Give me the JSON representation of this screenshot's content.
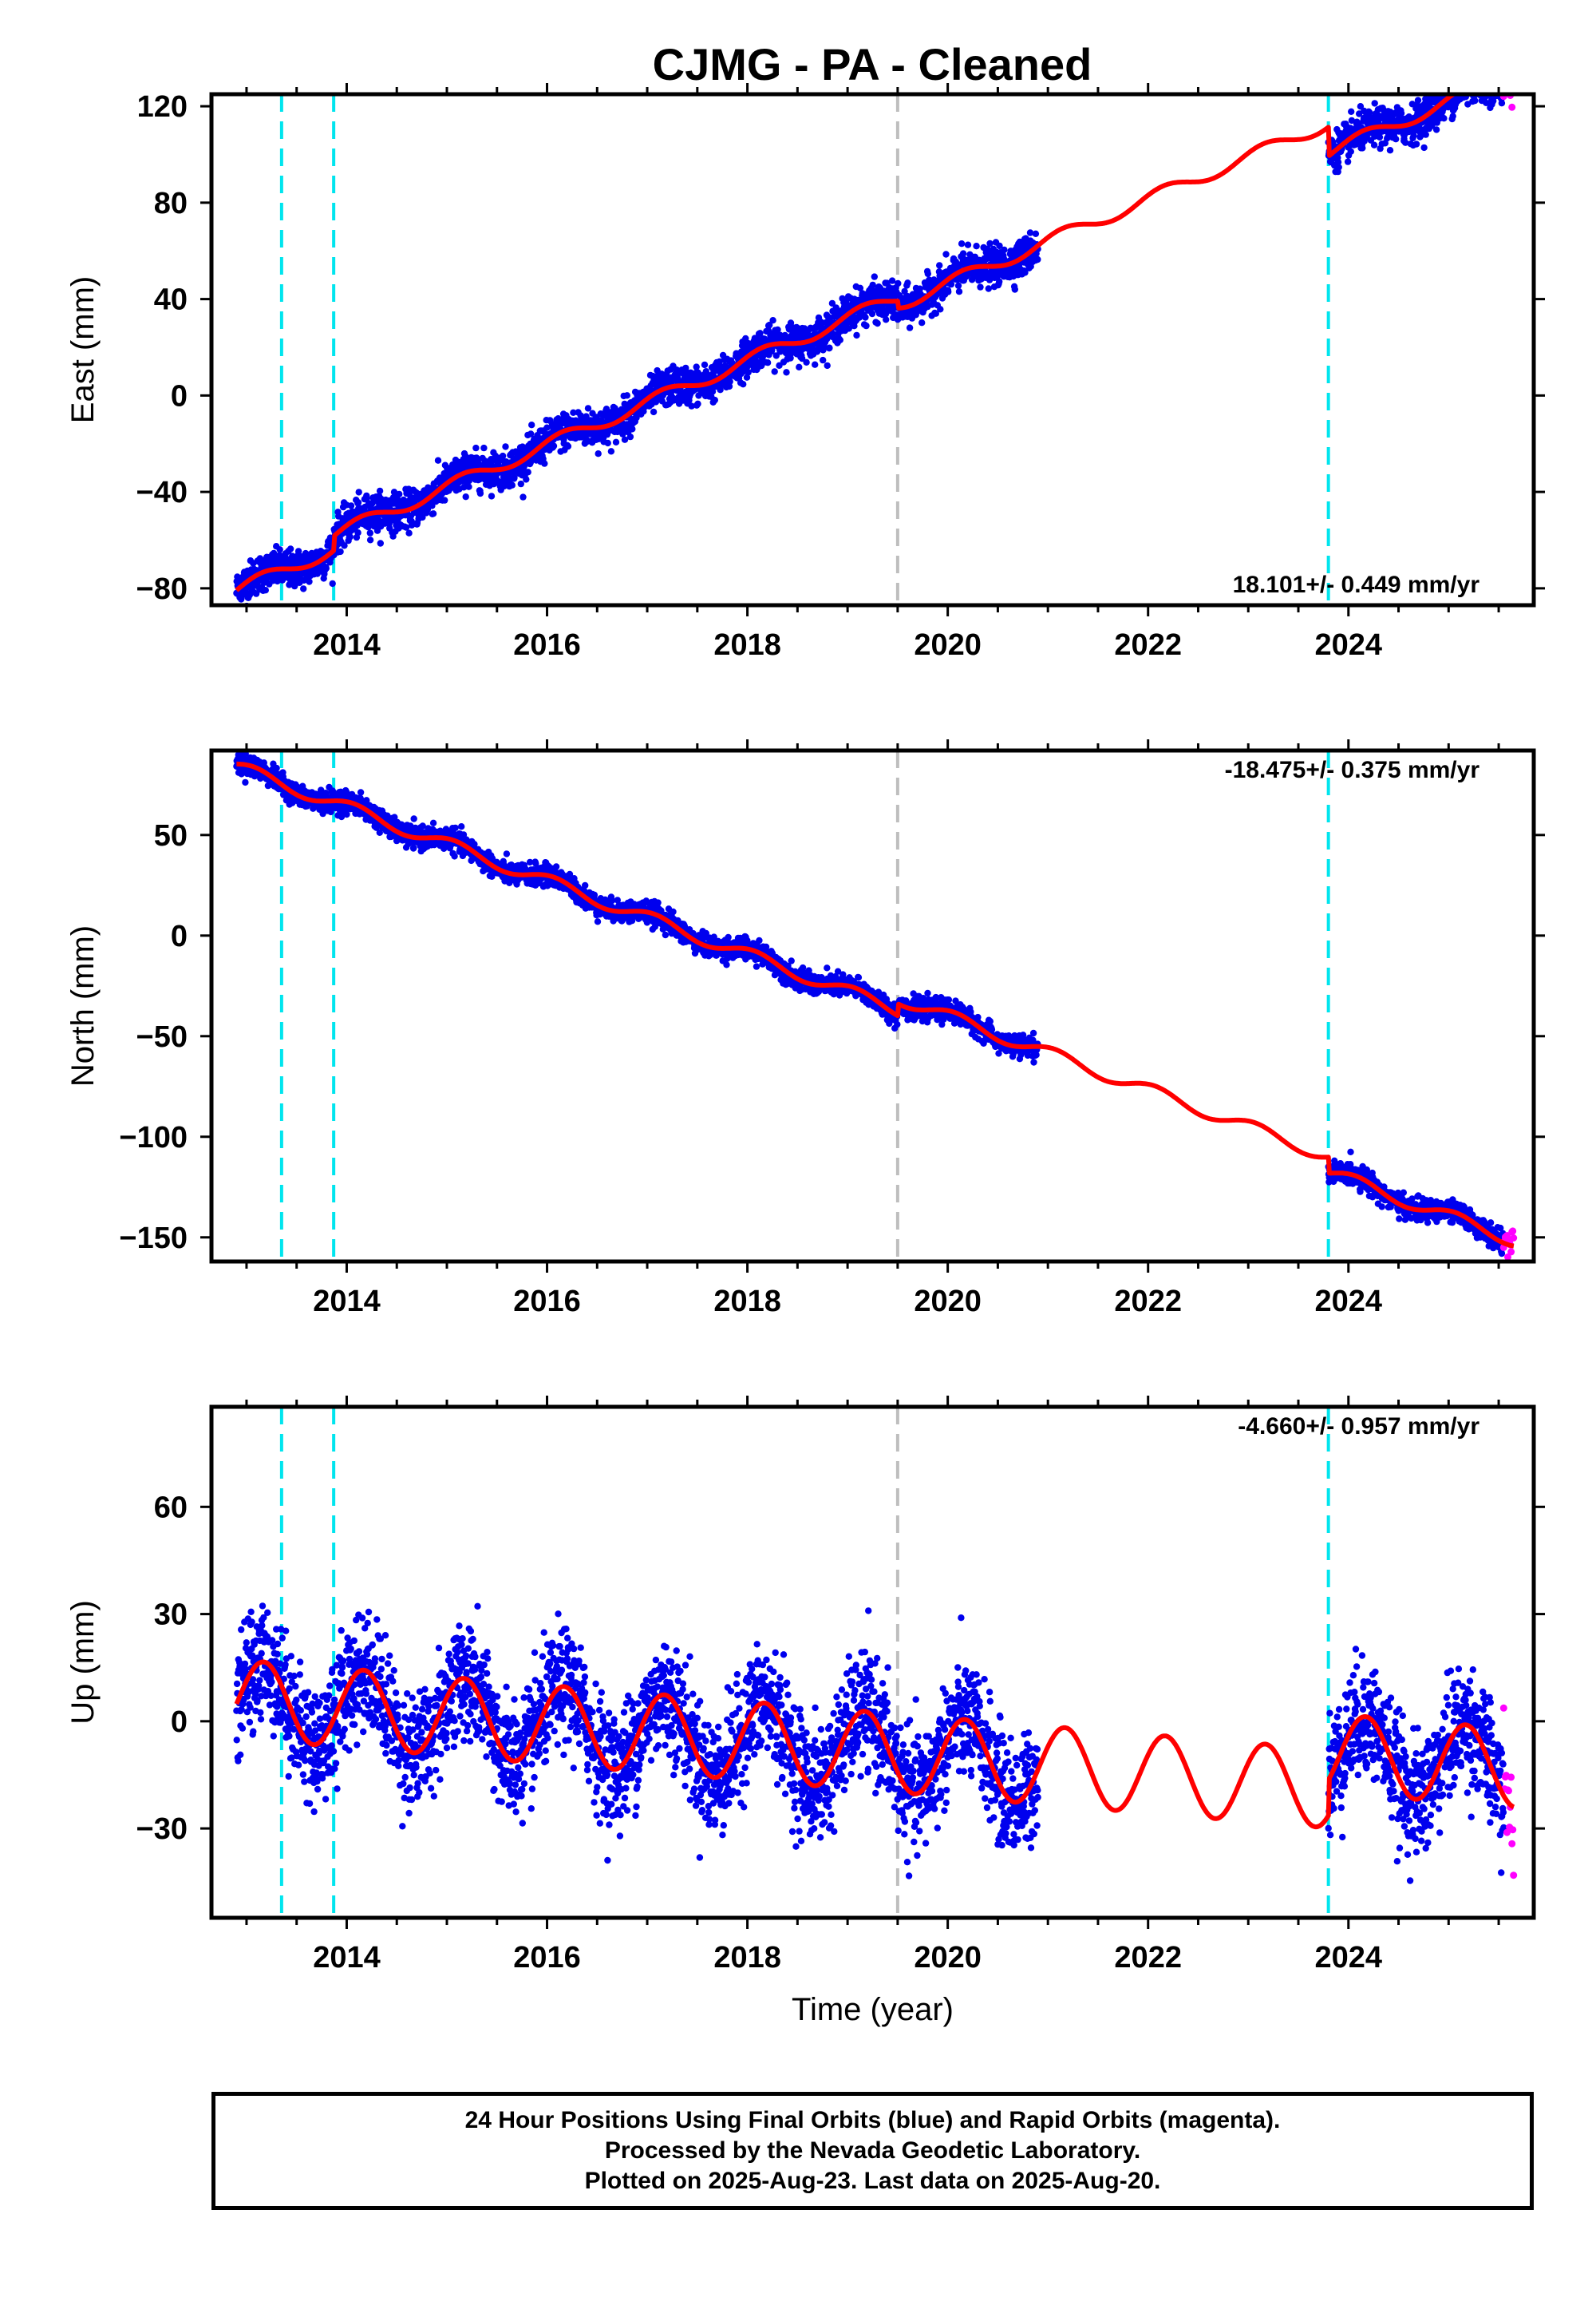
{
  "title": "CJMG  - PA - Cleaned",
  "footer": {
    "line1": "24 Hour Positions Using Final Orbits (blue) and Rapid Orbits (magenta).",
    "line2": "Processed by the Nevada Geodetic Laboratory.",
    "line3": "Plotted on 2025-Aug-23. Last data on 2025-Aug-20."
  },
  "colors": {
    "final_points": "#0000ee",
    "rapid_points": "#ff00ff",
    "model_fit": "#ff0000",
    "equipment_change": "#00e5ee",
    "other_event": "#bebebe"
  },
  "chart_data": [
    {
      "type": "scatter",
      "component": "east",
      "ylabel": "East (mm)",
      "xlabel": "",
      "xlim": [
        2012.65,
        2025.85
      ],
      "ylim": [
        -87,
        125
      ],
      "xticks": [
        2014,
        2016,
        2018,
        2020,
        2022,
        2024
      ],
      "xtick_labels": [
        "2014",
        "2016",
        "2018",
        "2020",
        "2022",
        "2024"
      ],
      "yticks": [
        -80,
        -40,
        0,
        40,
        80,
        120
      ],
      "ytick_labels": [
        "−80",
        "−40",
        "0",
        "40",
        "80",
        "120"
      ],
      "rate_label": "18.101+/- 0.449 mm/yr",
      "rate_position": "bottom-right",
      "equipment_changes": [
        2013.35,
        2013.87,
        2023.8
      ],
      "other_events": [
        2019.5
      ],
      "model": {
        "start": 2012.9,
        "end": 2025.65,
        "t0": 2013.0,
        "offset": -79,
        "rate": 17.5,
        "annual_amp": 2.8,
        "annual_phase": 0.6,
        "steps": [
          {
            "t": 2013.87,
            "dy": 6
          },
          {
            "t": 2019.5,
            "dy": -3
          },
          {
            "t": 2023.8,
            "dy": -12
          }
        ]
      },
      "scatter": 3.8,
      "final_segments": [
        [
          2012.9,
          2020.9
        ],
        [
          2023.8,
          2025.55
        ]
      ],
      "rapid_segment": [
        2025.55,
        2025.65
      ],
      "grid": false
    },
    {
      "type": "scatter",
      "component": "north",
      "ylabel": "North (mm)",
      "xlabel": "",
      "xlim": [
        2012.65,
        2025.85
      ],
      "ylim": [
        -162,
        92
      ],
      "xticks": [
        2014,
        2016,
        2018,
        2020,
        2022,
        2024
      ],
      "xtick_labels": [
        "2014",
        "2016",
        "2018",
        "2020",
        "2022",
        "2024"
      ],
      "yticks": [
        -150,
        -100,
        -50,
        0,
        50
      ],
      "ytick_labels": [
        "−150",
        "−100",
        "−50",
        "0",
        "50"
      ],
      "rate_label": "-18.475+/- 0.375 mm/yr",
      "rate_position": "top-right",
      "equipment_changes": [
        2013.35,
        2013.87,
        2023.8
      ],
      "other_events": [
        2019.5
      ],
      "model": {
        "start": 2012.9,
        "end": 2025.65,
        "t0": 2013.0,
        "offset": 82,
        "rate": -18.3,
        "annual_amp": 3.2,
        "annual_phase": 1.1,
        "steps": [
          {
            "t": 2019.5,
            "dy": 6
          },
          {
            "t": 2023.8,
            "dy": -8
          }
        ]
      },
      "scatter": 2.6,
      "final_segments": [
        [
          2012.9,
          2020.9
        ],
        [
          2023.8,
          2025.55
        ]
      ],
      "rapid_segment": [
        2025.55,
        2025.65
      ],
      "grid": false
    },
    {
      "type": "scatter",
      "component": "up",
      "ylabel": "Up (mm)",
      "xlabel": "Time (year)",
      "xlim": [
        2012.65,
        2025.85
      ],
      "ylim": [
        -55,
        88
      ],
      "xticks": [
        2014,
        2016,
        2018,
        2020,
        2022,
        2024
      ],
      "xtick_labels": [
        "2014",
        "2016",
        "2018",
        "2020",
        "2022",
        "2024"
      ],
      "yticks": [
        -30,
        0,
        30,
        60
      ],
      "ytick_labels": [
        "−30",
        "0",
        "30",
        "60"
      ],
      "rate_label": "-4.660+/- 0.957 mm/yr",
      "rate_position": "top-right",
      "equipment_changes": [
        2013.35,
        2013.87,
        2023.8
      ],
      "other_events": [
        2019.5
      ],
      "model": {
        "start": 2012.9,
        "end": 2025.65,
        "t0": 2013.0,
        "offset": 6,
        "rate": -2.3,
        "annual_amp": 11,
        "annual_phase": 0.5,
        "steps": [
          {
            "t": 2023.8,
            "dy": 10
          }
        ]
      },
      "scatter": 8,
      "final_segments": [
        [
          2012.9,
          2020.9
        ],
        [
          2023.8,
          2025.55
        ]
      ],
      "rapid_segment": [
        2025.55,
        2025.65
      ],
      "grid": false
    }
  ]
}
